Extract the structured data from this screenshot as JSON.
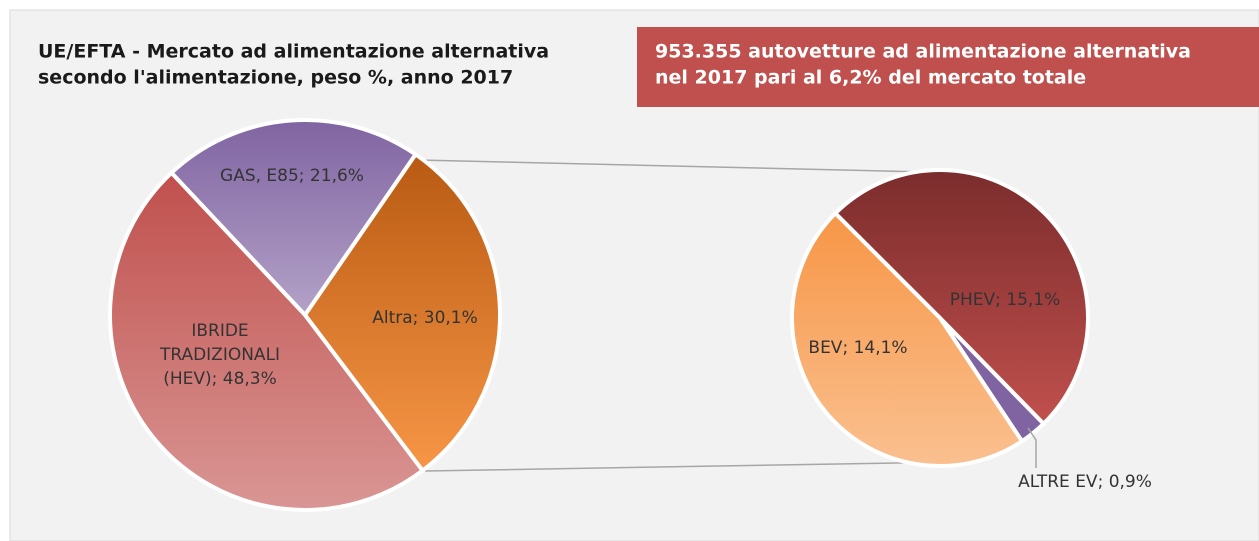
{
  "chart_data": [
    {
      "type": "pie",
      "title": [
        "UE/EFTA - Mercato ad alimentazione alternativa",
        "secondo l'alimentazione, peso %, anno 2017"
      ],
      "annotation": [
        "953.355 autovetture ad alimentazione alternativa",
        "nel 2017 pari al 6,2% del mercato totale"
      ],
      "values": [
        21.6,
        30.1,
        48.3
      ],
      "value_labels": [
        [
          "GAS, E85; 21,6%"
        ],
        [
          "Altra; 30,1%"
        ],
        [
          "IBRIDE",
          "TRADIZIONALI",
          "(HEV); 48,3%"
        ]
      ],
      "colors": [
        [
          "#8064a2",
          "#b3a2c7"
        ],
        [
          "#b85a12",
          "#f79646"
        ],
        [
          "#c0504d",
          "#d99694"
        ]
      ]
    },
    {
      "type": "pie",
      "values": [
        15.1,
        0.9,
        14.1
      ],
      "value_labels": [
        [
          "PHEV; 15,1%"
        ],
        [
          "ALTRE EV; 0,9%"
        ],
        [
          "BEV; 14,1%"
        ]
      ],
      "colors": [
        [
          "#7b2c2c",
          "#c0504d"
        ],
        [
          "#8064a2",
          "#8064a2"
        ],
        [
          "#f79646",
          "#fac090"
        ]
      ]
    }
  ]
}
